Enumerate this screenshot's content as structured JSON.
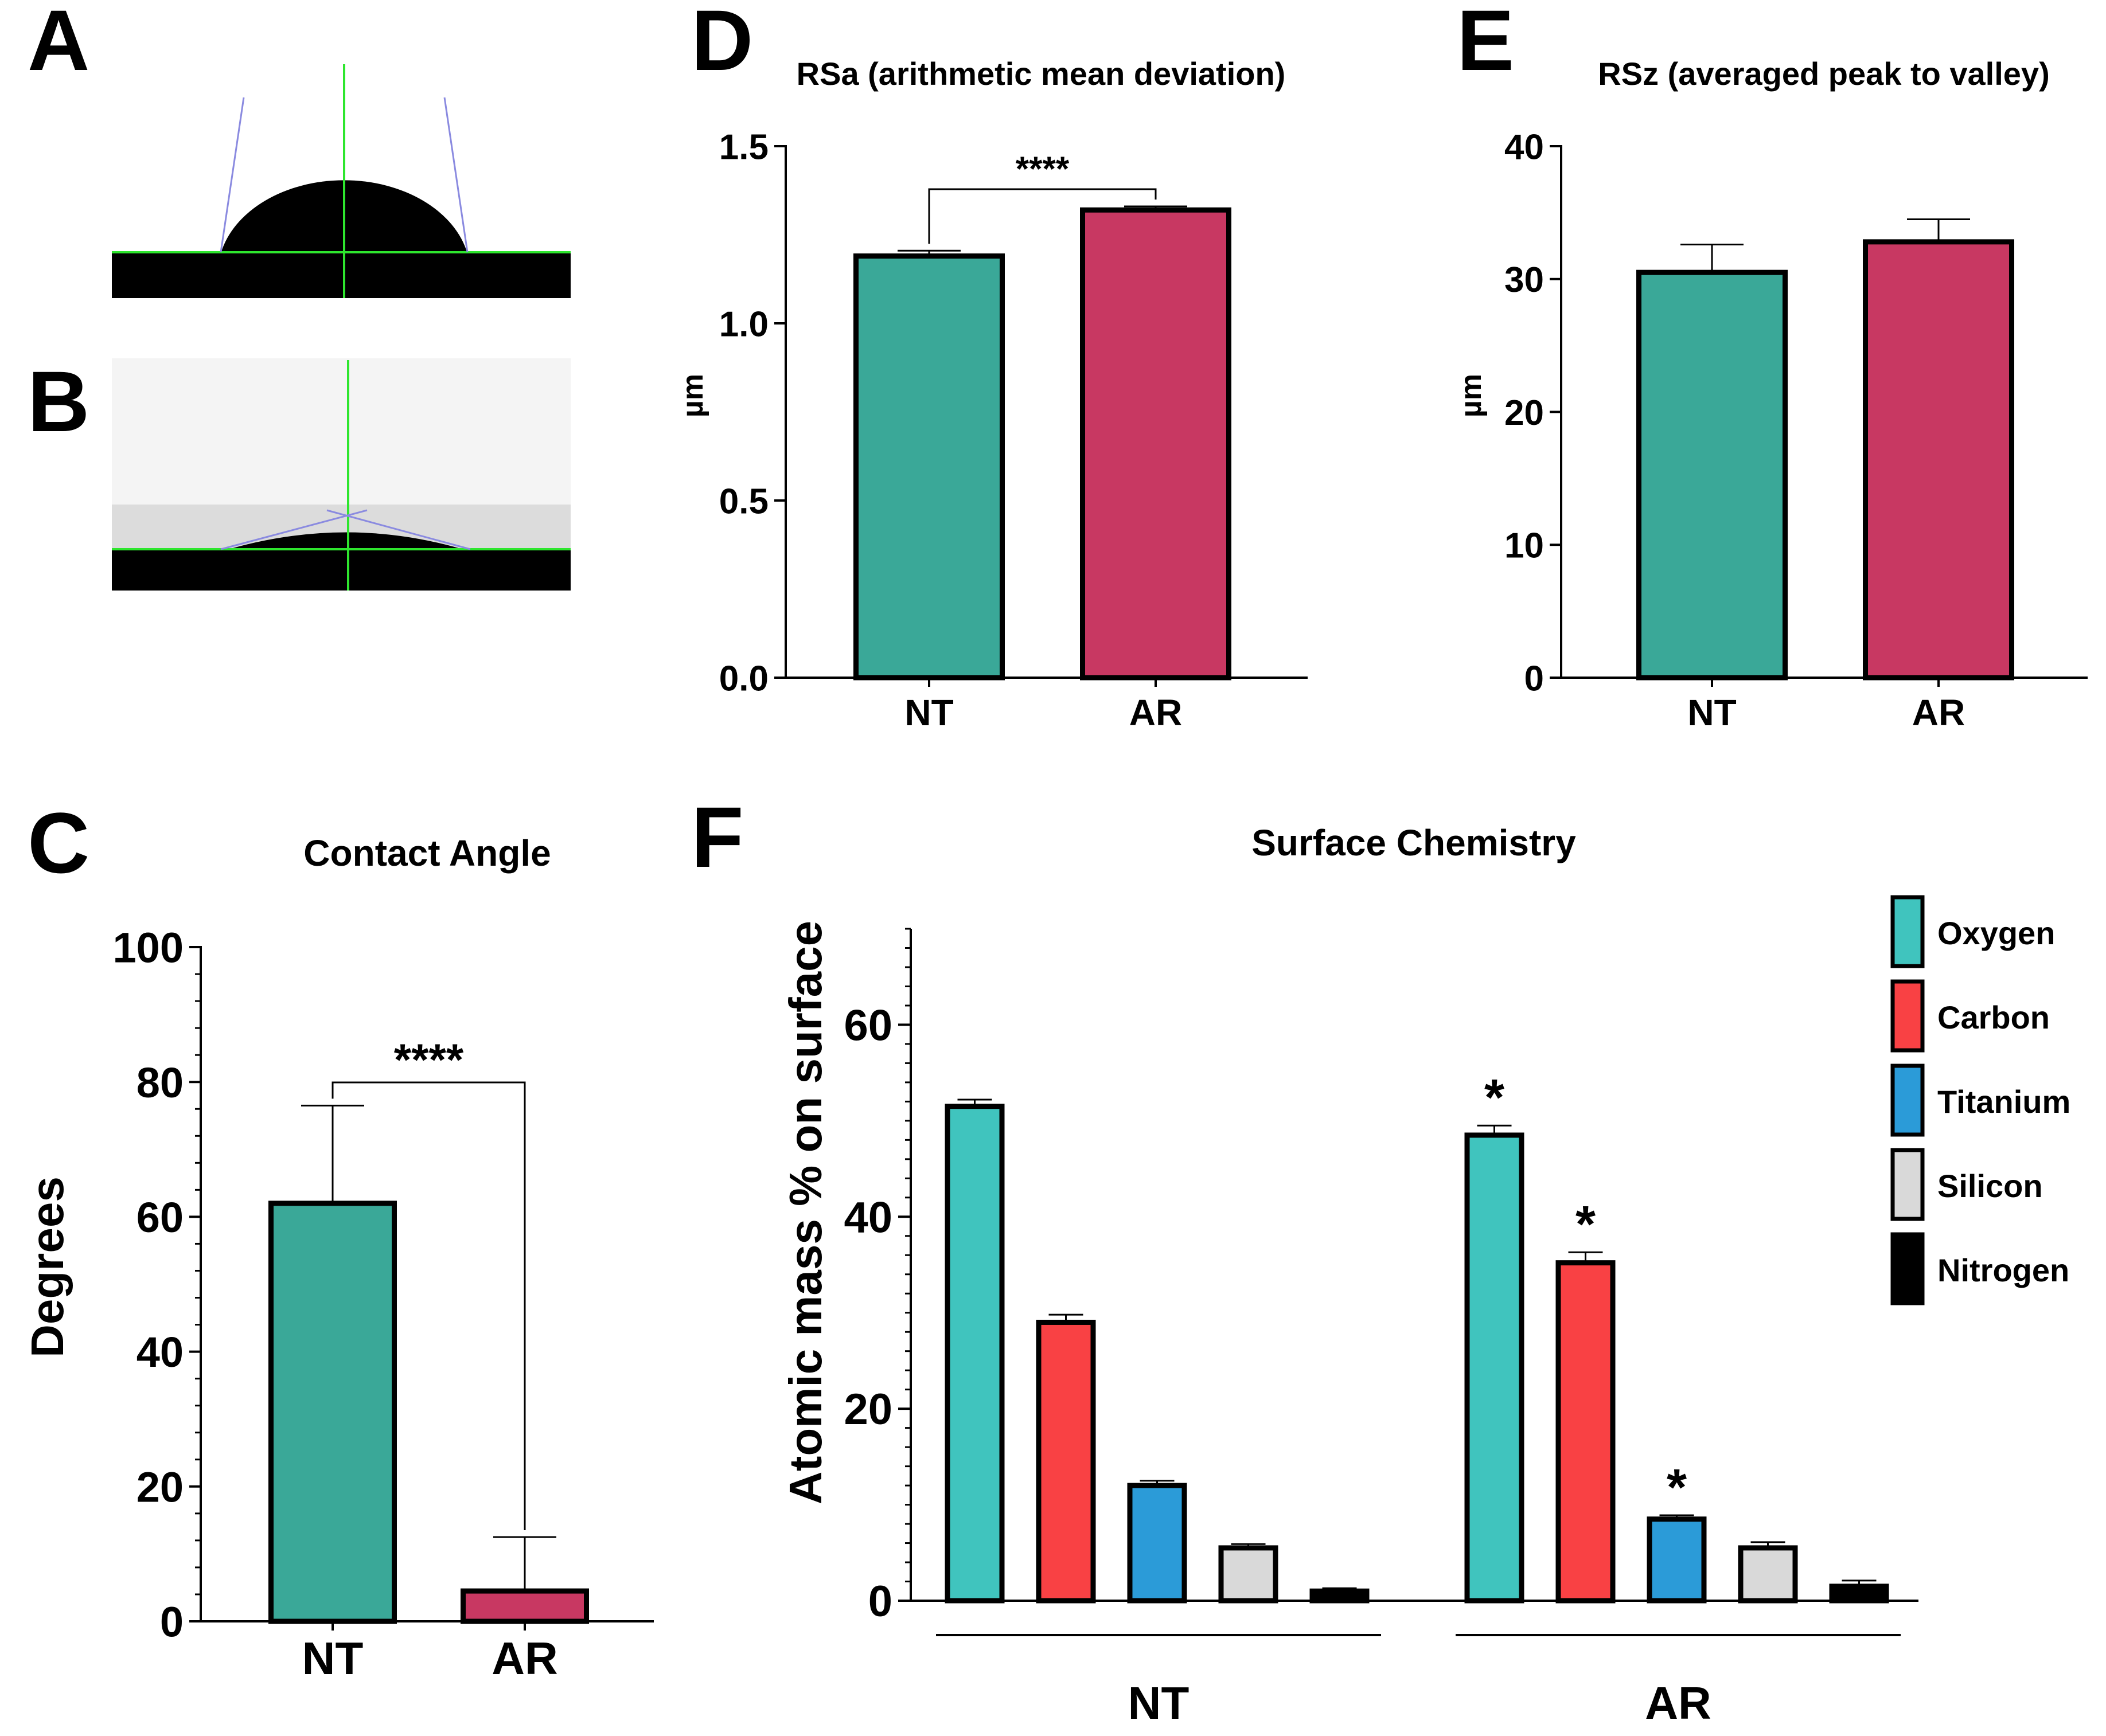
{
  "panels": {
    "A": {
      "letter": "A"
    },
    "B": {
      "letter": "B"
    },
    "C": {
      "letter": "C"
    },
    "D": {
      "letter": "D"
    },
    "E": {
      "letter": "E"
    },
    "F": {
      "letter": "F"
    }
  },
  "colors": {
    "NT": "#3aa898",
    "AR": "#c83862",
    "Oxygen": "#40c4be",
    "Carbon": "#f94144",
    "Titanium": "#2b9bd8",
    "Silicon": "#d9d9d9",
    "Nitrogen": "#000000",
    "drop_line": "#2ee62e",
    "tangent_line": "#8a8ae0"
  },
  "chart_data": [
    {
      "id": "C",
      "type": "bar",
      "title": "Contact Angle",
      "xlabel": "",
      "ylabel": "Degrees",
      "categories": [
        "NT",
        "AR"
      ],
      "values": [
        62,
        4.5
      ],
      "errors": [
        14.5,
        8
      ],
      "ylim": [
        0,
        100
      ],
      "yticks": [
        0,
        20,
        40,
        60,
        80,
        100
      ],
      "ytick_labels": [
        "0",
        "20",
        "40",
        "60",
        "80",
        "100"
      ],
      "significance": "****"
    },
    {
      "id": "D",
      "type": "bar",
      "title": "RSa (arithmetic mean deviation)",
      "xlabel": "",
      "ylabel": "µm",
      "categories": [
        "NT",
        "AR"
      ],
      "values": [
        1.19,
        1.32
      ],
      "errors": [
        0.015,
        0.01
      ],
      "ylim": [
        0,
        1.5
      ],
      "yticks": [
        0,
        0.5,
        1.0,
        1.5
      ],
      "ytick_labels": [
        "0.0",
        "0.5",
        "1.0",
        "1.5"
      ],
      "significance": "****"
    },
    {
      "id": "E",
      "type": "bar",
      "title": "RSz (averaged peak to valley)",
      "xlabel": "",
      "ylabel": "µm",
      "categories": [
        "NT",
        "AR"
      ],
      "values": [
        30.5,
        32.8
      ],
      "errors": [
        2.1,
        1.7
      ],
      "ylim": [
        0,
        40
      ],
      "yticks": [
        0,
        10,
        20,
        30,
        40
      ],
      "ytick_labels": [
        "0",
        "10",
        "20",
        "30",
        "40"
      ]
    },
    {
      "id": "F",
      "type": "bar",
      "title": "Surface Chemistry",
      "xlabel": "",
      "ylabel": "Atomic mass % on surface",
      "categories": [
        "NT",
        "AR"
      ],
      "series": [
        {
          "name": "Oxygen",
          "values": [
            51.5,
            48.5
          ],
          "errors": [
            0.7,
            1.0
          ],
          "stars": [
            "",
            "*"
          ]
        },
        {
          "name": "Carbon",
          "values": [
            29,
            35.2
          ],
          "errors": [
            0.8,
            1.1
          ],
          "stars": [
            "",
            "*"
          ]
        },
        {
          "name": "Titanium",
          "values": [
            12,
            8.5
          ],
          "errors": [
            0.5,
            0.4
          ],
          "stars": [
            "",
            "*"
          ]
        },
        {
          "name": "Silicon",
          "values": [
            5.5,
            5.5
          ],
          "errors": [
            0.4,
            0.6
          ],
          "stars": [
            "",
            ""
          ]
        },
        {
          "name": "Nitrogen",
          "values": [
            1,
            1.5
          ],
          "errors": [
            0.3,
            0.6
          ],
          "stars": [
            "",
            ""
          ]
        }
      ],
      "ylim": [
        0,
        70
      ],
      "yticks": [
        0,
        20,
        40,
        60
      ],
      "ytick_labels": [
        "0",
        "20",
        "40",
        "60"
      ],
      "legend": "right"
    }
  ]
}
